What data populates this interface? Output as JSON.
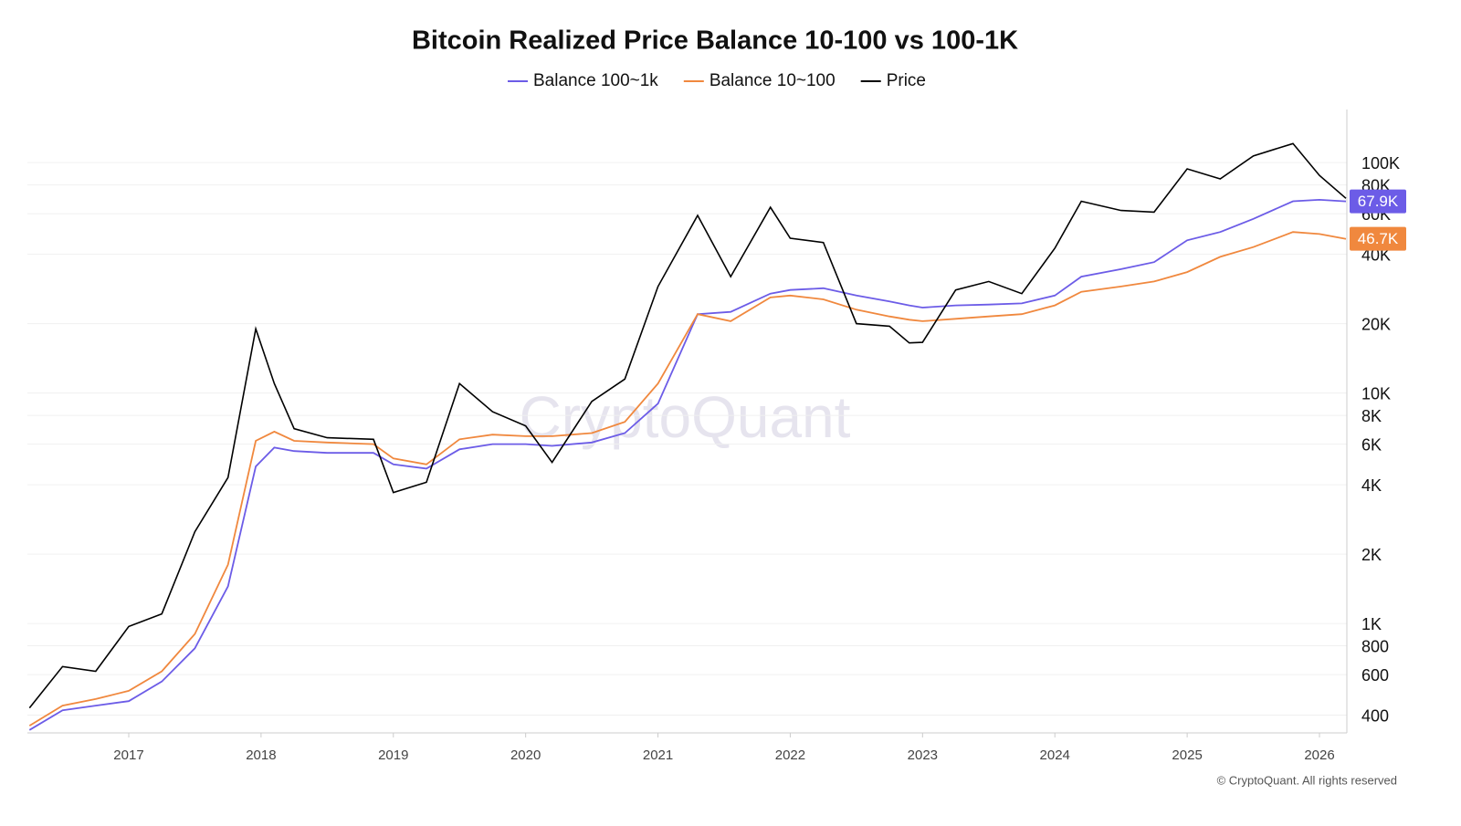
{
  "chart_data": {
    "type": "line",
    "title": "Bitcoin Realized Price Balance 10-100 vs 100-1K",
    "watermark": "CryptoQuant",
    "footer": "© CryptoQuant. All rights reserved",
    "log_scale": true,
    "grid": true,
    "legend": "top",
    "x": [
      2016.25,
      2016.5,
      2016.75,
      2017.0,
      2017.25,
      2017.5,
      2017.75,
      2017.96,
      2018.1,
      2018.25,
      2018.5,
      2018.85,
      2019.0,
      2019.25,
      2019.5,
      2019.75,
      2020.0,
      2020.2,
      2020.5,
      2020.75,
      2021.0,
      2021.3,
      2021.55,
      2021.85,
      2022.0,
      2022.25,
      2022.5,
      2022.75,
      2022.9,
      2023.0,
      2023.25,
      2023.5,
      2023.75,
      2024.0,
      2024.2,
      2024.5,
      2024.75,
      2025.0,
      2025.25,
      2025.5,
      2025.8,
      2026.0,
      2026.2
    ],
    "xlim": [
      2016.234,
      2026.207
    ],
    "xticks": [
      2017,
      2018,
      2019,
      2020,
      2021,
      2022,
      2023,
      2024,
      2025,
      2026
    ],
    "ylim": [
      335,
      170000
    ],
    "yticks": [
      400,
      600,
      800,
      {
        "value": 1000,
        "label": "1K"
      },
      {
        "value": 2000,
        "label": "2K"
      },
      {
        "value": 4000,
        "label": "4K"
      },
      {
        "value": 6000,
        "label": "6K"
      },
      {
        "value": 8000,
        "label": "8K"
      },
      {
        "value": 10000,
        "label": "10K"
      },
      {
        "value": 20000,
        "label": "20K"
      },
      {
        "value": 40000,
        "label": "40K"
      },
      {
        "value": 60000,
        "label": "60K"
      },
      {
        "value": 80000,
        "label": "80K"
      },
      {
        "value": 100000,
        "label": "100K"
      }
    ],
    "series": [
      {
        "name": "Balance 100~1k",
        "color": "#6c5ce7",
        "values": [
          345,
          420,
          440,
          460,
          560,
          780,
          1450,
          4800,
          5800,
          5600,
          5500,
          5500,
          4900,
          4700,
          5700,
          6000,
          6000,
          5900,
          6100,
          6700,
          9000,
          22000,
          22500,
          27000,
          28000,
          28500,
          26500,
          25000,
          24000,
          23500,
          24000,
          24200,
          24500,
          26500,
          32000,
          34500,
          37000,
          46000,
          50000,
          57000,
          68000,
          69000,
          67900
        ],
        "value_labels": [
          null,
          null,
          null,
          null,
          null,
          null,
          null,
          null,
          null,
          null,
          null,
          null,
          null,
          null,
          null,
          null,
          null,
          null,
          null,
          null,
          null,
          null,
          null,
          null,
          null,
          null,
          null,
          null,
          null,
          null,
          null,
          null,
          null,
          null,
          null,
          null,
          null,
          null,
          null,
          null,
          null,
          null,
          "67.9K"
        ]
      },
      {
        "name": "Balance 10~100",
        "color": "#f0883e",
        "values": [
          360,
          440,
          470,
          510,
          620,
          900,
          1800,
          6200,
          6800,
          6200,
          6100,
          6000,
          5200,
          4900,
          6300,
          6600,
          6500,
          6500,
          6700,
          7500,
          11000,
          22000,
          20500,
          26000,
          26500,
          25500,
          23000,
          21500,
          20800,
          20500,
          21000,
          21500,
          22000,
          24000,
          27500,
          29000,
          30500,
          33500,
          39000,
          43000,
          50000,
          49000,
          46700
        ],
        "value_labels": [
          null,
          null,
          null,
          null,
          null,
          null,
          null,
          null,
          null,
          null,
          null,
          null,
          null,
          null,
          null,
          null,
          null,
          null,
          null,
          null,
          null,
          null,
          null,
          null,
          null,
          null,
          null,
          null,
          null,
          null,
          null,
          null,
          null,
          null,
          null,
          null,
          null,
          null,
          null,
          null,
          null,
          null,
          "46.7K"
        ]
      },
      {
        "name": "Price",
        "color": "#000000",
        "values": [
          430,
          650,
          620,
          970,
          1100,
          2500,
          4300,
          19000,
          11000,
          7000,
          6400,
          6300,
          3700,
          4100,
          11000,
          8300,
          7200,
          5000,
          9200,
          11500,
          29000,
          59000,
          32000,
          64000,
          47000,
          45000,
          20000,
          19500,
          16500,
          16600,
          28000,
          30500,
          27000,
          42500,
          68000,
          62000,
          61000,
          94000,
          85000,
          107000,
          121000,
          88000,
          70000
        ]
      }
    ]
  }
}
